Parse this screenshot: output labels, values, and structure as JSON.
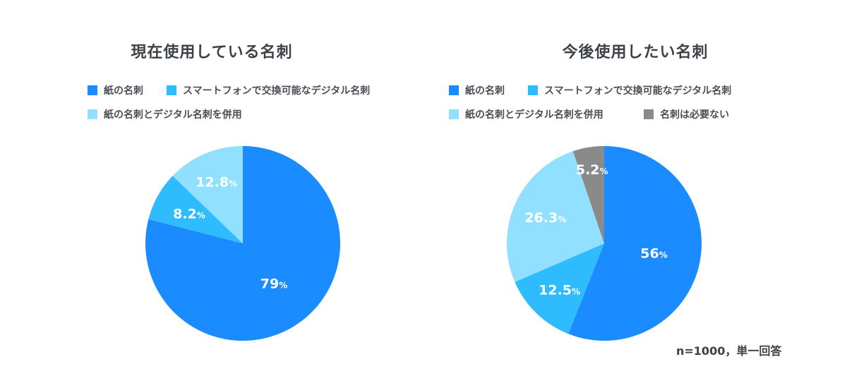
{
  "chart_data": [
    {
      "type": "pie",
      "title": "現在使用している名刺",
      "percent_unit": "%",
      "legend_placement": "top",
      "slices": [
        {
          "label": "紙の名刺",
          "value": 79,
          "display": "79",
          "color": "#1a8cff"
        },
        {
          "label": "スマートフォンで交換可能なデジタル名刺",
          "value": 8.2,
          "display": "8.2",
          "color": "#2ebcff"
        },
        {
          "label": "紙の名刺とデジタル名刺を併用",
          "value": 12.8,
          "display": "12.8",
          "color": "#92e0ff"
        }
      ]
    },
    {
      "type": "pie",
      "title": "今後使用したい名刺",
      "percent_unit": "%",
      "legend_placement": "top",
      "slices": [
        {
          "label": "紙の名刺",
          "value": 56,
          "display": "56",
          "color": "#1a8cff"
        },
        {
          "label": "スマートフォンで交換可能なデジタル名刺",
          "value": 12.5,
          "display": "12.5",
          "color": "#2ebcff"
        },
        {
          "label": "紙の名刺とデジタル名刺を併用",
          "value": 26.3,
          "display": "26.3",
          "color": "#92e0ff"
        },
        {
          "label": "名刺は必要ない",
          "value": 5.2,
          "display": "5.2",
          "color": "#8a8a8a"
        }
      ]
    }
  ],
  "footnote": "n=1000，単一回答"
}
